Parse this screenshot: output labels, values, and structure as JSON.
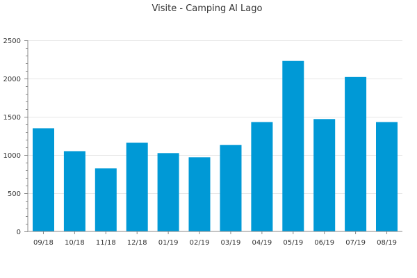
{
  "chart_data": {
    "type": "bar",
    "title": "Visite - Camping Al Lago",
    "xlabel": "",
    "ylabel": "",
    "categories": [
      "09/18",
      "10/18",
      "11/18",
      "12/18",
      "01/19",
      "02/19",
      "03/19",
      "04/19",
      "05/19",
      "06/19",
      "07/19",
      "08/19"
    ],
    "values": [
      1350,
      1050,
      825,
      1160,
      1025,
      970,
      1130,
      1430,
      2230,
      1470,
      2020,
      1430
    ],
    "ylim": [
      0,
      2500
    ],
    "yticks": [
      0,
      500,
      1000,
      1500,
      2000,
      2500
    ],
    "grid": true,
    "legend": "none",
    "colors": {
      "bar": "#0099d6",
      "grid": "#e6e6e6",
      "axis": "#888888",
      "text": "#333333"
    }
  }
}
